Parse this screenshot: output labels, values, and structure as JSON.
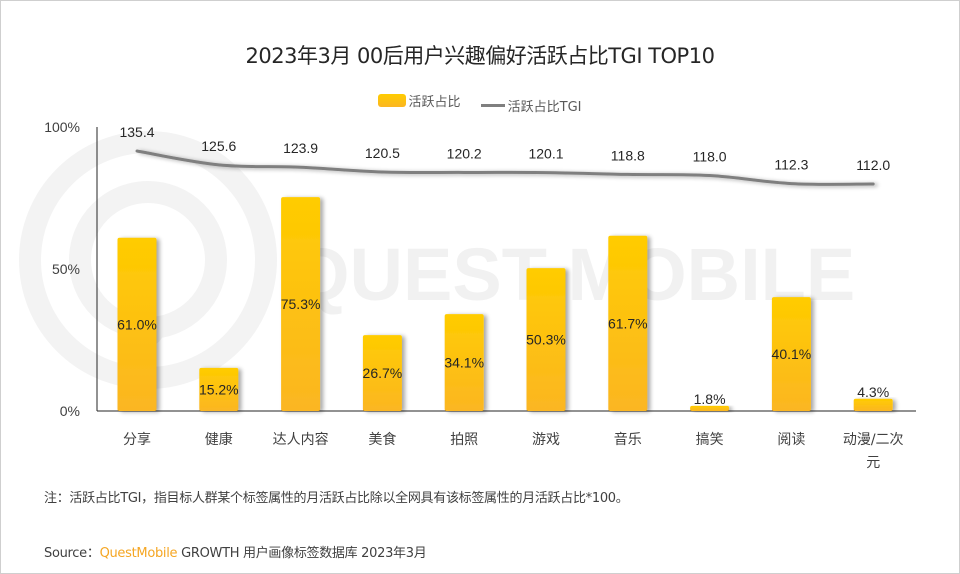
{
  "watermark": {
    "text": "QUEST MOBILE"
  },
  "note": "注：活跃占比TGI，指目标人群某个标签属性的月活跃占比除以全网具有该标签属性的月活跃占比*100。",
  "source": {
    "label": "Source：",
    "brand": "QuestMobile",
    "rest": " GROWTH 用户画像标签数据库 2023年3月"
  },
  "colors": {
    "bar_top": "#ffcc00",
    "bar_bottom": "#fbb622",
    "line": "#7f7f7f",
    "brand": "#f5a623"
  },
  "chart_data": {
    "type": "bar",
    "title": "2023年3月 00后用户兴趣偏好活跃占比TGI TOP10",
    "xlabel": "",
    "ylabel": "",
    "ylim": [
      0,
      100
    ],
    "y_ticks": [
      "0%",
      "50%",
      "100%"
    ],
    "grid": false,
    "legend": {
      "position": "top-center",
      "entries": [
        "活跃占比",
        "活跃占比TGI"
      ]
    },
    "categories": [
      "分享",
      "健康",
      "达人内容",
      "美食",
      "拍照",
      "游戏",
      "音乐",
      "搞笑",
      "阅读",
      "动漫/二次元"
    ],
    "series": [
      {
        "name": "活跃占比",
        "type": "bar",
        "unit": "%",
        "values": [
          61.0,
          15.2,
          75.3,
          26.7,
          34.1,
          50.3,
          61.7,
          1.8,
          40.1,
          4.3
        ],
        "labels": [
          "61.0%",
          "15.2%",
          "75.3%",
          "26.7%",
          "34.1%",
          "50.3%",
          "61.7%",
          "1.8%",
          "40.1%",
          "4.3%"
        ]
      },
      {
        "name": "活跃占比TGI",
        "type": "line",
        "values": [
          135.4,
          125.6,
          123.9,
          120.5,
          120.2,
          120.1,
          118.8,
          118.0,
          112.3,
          112.0
        ],
        "labels": [
          "135.4",
          "125.6",
          "123.9",
          "120.5",
          "120.2",
          "120.1",
          "118.8",
          "118.0",
          "112.3",
          "112.0"
        ]
      }
    ]
  }
}
